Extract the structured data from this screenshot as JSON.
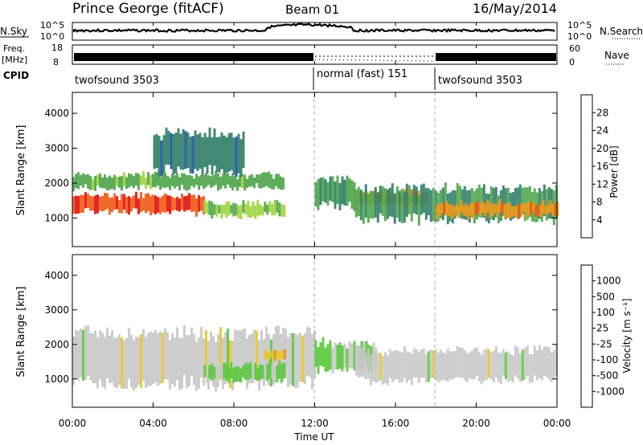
{
  "header": {
    "station": "Prince George (fitACF)",
    "beam": "Beam 01",
    "date": "16/May/2014"
  },
  "top_panels": {
    "nsky_label": "N.Sky",
    "nsearch_label": "N.Search",
    "nsky_ticks": [
      "10^5",
      "10^0"
    ],
    "nsky_right_ticks": [
      "10^5",
      "10^0"
    ],
    "freq_label": "Freq.",
    "freq_unit": "[MHz]",
    "freq_ticks": [
      "18",
      "8"
    ],
    "nave_ticks": [
      "60",
      "0"
    ],
    "nave_label": "Nave",
    "cpid_label": "CPID",
    "cpid_segments": [
      {
        "label": "twofsound 3503",
        "start_hour": 0
      },
      {
        "label": "normal (fast) 151",
        "start_hour": 12
      },
      {
        "label": "twofsound 3503",
        "start_hour": 18
      }
    ]
  },
  "power_panel": {
    "y_label": "Slant Range [km]",
    "y_ticks": [
      "4000",
      "3000",
      "2000",
      "1000"
    ],
    "colorbar_label": "Power [dB]",
    "colorbar_ticks": [
      "28",
      "24",
      "20",
      "16",
      "12",
      "8",
      "4"
    ],
    "colors": [
      "#0b1fd9",
      "#1c50a6",
      "#2f7d66",
      "#4ea44a",
      "#9fd23b",
      "#f2d51a",
      "#f39a18",
      "#ef5a12",
      "#e01010"
    ]
  },
  "velocity_panel": {
    "y_label": "Slant Range [km]",
    "y_ticks": [
      "4000",
      "3000",
      "2000",
      "1000"
    ],
    "colorbar_label": "Velocity [m s⁻¹]",
    "colorbar_ticks": [
      "1000",
      "500",
      "100",
      "25",
      "-25",
      "-100",
      "-500",
      "-1000"
    ],
    "colors": [
      "#1a2fd2",
      "#2050a0",
      "#2f8a3a",
      "#58c83a",
      "#c8c8c8",
      "#e6c620",
      "#f08a18",
      "#e84e12",
      "#e01010"
    ]
  },
  "x_axis": {
    "label": "Time UT",
    "ticks": [
      "00:00",
      "04:00",
      "08:00",
      "12:00",
      "16:00",
      "20:00",
      "00:00"
    ]
  },
  "chart_data": {
    "type": "heatmap",
    "title": "Prince George (fitACF)",
    "subtitle": "Beam 01",
    "date": "16/May/2014",
    "xlabel": "Time UT",
    "xlim_hours": [
      0,
      24
    ],
    "ylabel": "Slant Range [km]",
    "ylim": [
      180,
      4600
    ],
    "panels": [
      {
        "quantity": "Power",
        "unit": "dB",
        "color_range": [
          0,
          30
        ],
        "bands": [
          {
            "hours": [
              0,
              6.5
            ],
            "range_km": [
              1100,
              1700
            ],
            "value": 26
          },
          {
            "hours": [
              0,
              10.5
            ],
            "range_km": [
              1800,
              2300
            ],
            "value": 12
          },
          {
            "hours": [
              4,
              8.5
            ],
            "range_km": [
              2300,
              3500
            ],
            "value": 8
          },
          {
            "hours": [
              6.5,
              10.5
            ],
            "range_km": [
              1000,
              1500
            ],
            "value": 14
          },
          {
            "hours": [
              12,
              14
            ],
            "range_km": [
              1300,
              2200
            ],
            "value": 10
          },
          {
            "hours": [
              14,
              17.5
            ],
            "range_km": [
              1300,
              1800
            ],
            "value": 22
          },
          {
            "hours": [
              14,
              24
            ],
            "range_km": [
              900,
              1900
            ],
            "value": 10
          },
          {
            "hours": [
              18,
              24
            ],
            "range_km": [
              1000,
              1500
            ],
            "value": 22
          }
        ]
      },
      {
        "quantity": "Velocity",
        "unit": "m s⁻¹",
        "color_range": [
          -1000,
          1000
        ],
        "bands": [
          {
            "hours": [
              0,
              12
            ],
            "range_km": [
              800,
              2400
            ],
            "value": 0
          },
          {
            "hours": [
              6.5,
              10.5
            ],
            "range_km": [
              900,
              1500
            ],
            "value": 150
          },
          {
            "hours": [
              9.5,
              10.5
            ],
            "range_km": [
              1500,
              1900
            ],
            "value": -300
          },
          {
            "hours": [
              12,
              15
            ],
            "range_km": [
              1200,
              2100
            ],
            "value": 120
          },
          {
            "hours": [
              14,
              24
            ],
            "range_km": [
              900,
              1900
            ],
            "value": 0
          }
        ]
      }
    ],
    "cpid_changes_hours": [
      12,
      18
    ]
  }
}
